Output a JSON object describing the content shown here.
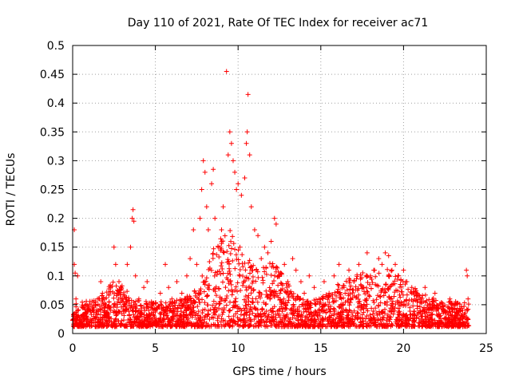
{
  "chart_data": {
    "type": "scatter",
    "title": "Day 110 of 2021, Rate Of TEC Index for receiver ac71",
    "xlabel": "GPS time / hours",
    "ylabel": "ROTI / TECUs",
    "xlim": [
      0,
      25
    ],
    "ylim": [
      0,
      0.5
    ],
    "xticks": [
      0,
      5,
      10,
      15,
      20,
      25
    ],
    "yticks": [
      0,
      0.05,
      0.1,
      0.15,
      0.2,
      0.25,
      0.3,
      0.35,
      0.4,
      0.45,
      0.5
    ],
    "xtick_labels": [
      "0",
      "5",
      "10",
      "15",
      "20",
      "25"
    ],
    "ytick_labels": [
      "0",
      "0.05",
      "0.1",
      "0.15",
      "0.2",
      "0.25",
      "0.3",
      "0.35",
      "0.4",
      "0.45",
      "0.5"
    ],
    "grid": true,
    "marker": "+",
    "series": [
      {
        "color": "#ff0000",
        "points": [
          [
            0.1,
            0.18
          ],
          [
            0.1,
            0.12
          ],
          [
            0.15,
            0.105
          ],
          [
            0.3,
            0.1
          ],
          [
            0.2,
            0.06
          ],
          [
            0.05,
            0.03
          ],
          [
            0.3,
            0.04
          ],
          [
            0.5,
            0.02
          ],
          [
            0.8,
            0.03
          ],
          [
            1.0,
            0.05
          ],
          [
            1.2,
            0.04
          ],
          [
            1.5,
            0.06
          ],
          [
            1.7,
            0.09
          ],
          [
            1.8,
            0.07
          ],
          [
            2.0,
            0.05
          ],
          [
            2.3,
            0.08
          ],
          [
            2.5,
            0.15
          ],
          [
            2.6,
            0.12
          ],
          [
            2.8,
            0.09
          ],
          [
            3.0,
            0.06
          ],
          [
            3.3,
            0.12
          ],
          [
            3.5,
            0.15
          ],
          [
            3.6,
            0.2
          ],
          [
            3.65,
            0.215
          ],
          [
            3.7,
            0.195
          ],
          [
            3.8,
            0.1
          ],
          [
            4.0,
            0.06
          ],
          [
            4.3,
            0.08
          ],
          [
            4.5,
            0.09
          ],
          [
            4.8,
            0.05
          ],
          [
            5.0,
            0.04
          ],
          [
            5.3,
            0.07
          ],
          [
            5.6,
            0.12
          ],
          [
            5.8,
            0.08
          ],
          [
            6.0,
            0.06
          ],
          [
            6.3,
            0.09
          ],
          [
            6.6,
            0.07
          ],
          [
            6.9,
            0.1
          ],
          [
            7.1,
            0.13
          ],
          [
            7.3,
            0.18
          ],
          [
            7.5,
            0.12
          ],
          [
            7.7,
            0.2
          ],
          [
            7.8,
            0.25
          ],
          [
            7.9,
            0.3
          ],
          [
            8.0,
            0.28
          ],
          [
            8.1,
            0.22
          ],
          [
            8.2,
            0.18
          ],
          [
            8.4,
            0.26
          ],
          [
            8.5,
            0.285
          ],
          [
            8.6,
            0.2
          ],
          [
            8.8,
            0.15
          ],
          [
            9.0,
            0.18
          ],
          [
            9.1,
            0.22
          ],
          [
            9.3,
            0.455
          ],
          [
            9.4,
            0.31
          ],
          [
            9.5,
            0.35
          ],
          [
            9.6,
            0.33
          ],
          [
            9.7,
            0.3
          ],
          [
            9.8,
            0.28
          ],
          [
            9.9,
            0.25
          ],
          [
            10.0,
            0.26
          ],
          [
            10.2,
            0.24
          ],
          [
            10.4,
            0.27
          ],
          [
            10.5,
            0.33
          ],
          [
            10.55,
            0.35
          ],
          [
            10.6,
            0.415
          ],
          [
            10.7,
            0.31
          ],
          [
            10.8,
            0.22
          ],
          [
            11.0,
            0.18
          ],
          [
            11.2,
            0.17
          ],
          [
            11.4,
            0.13
          ],
          [
            11.6,
            0.15
          ],
          [
            11.8,
            0.14
          ],
          [
            12.0,
            0.16
          ],
          [
            12.2,
            0.2
          ],
          [
            12.3,
            0.19
          ],
          [
            12.5,
            0.1
          ],
          [
            12.8,
            0.12
          ],
          [
            13.0,
            0.09
          ],
          [
            13.3,
            0.13
          ],
          [
            13.5,
            0.11
          ],
          [
            13.8,
            0.09
          ],
          [
            14.0,
            0.07
          ],
          [
            14.3,
            0.1
          ],
          [
            14.6,
            0.08
          ],
          [
            14.9,
            0.06
          ],
          [
            15.2,
            0.09
          ],
          [
            15.5,
            0.07
          ],
          [
            15.8,
            0.1
          ],
          [
            16.1,
            0.12
          ],
          [
            16.4,
            0.08
          ],
          [
            16.7,
            0.11
          ],
          [
            17.0,
            0.09
          ],
          [
            17.3,
            0.12
          ],
          [
            17.6,
            0.08
          ],
          [
            17.8,
            0.14
          ],
          [
            18.0,
            0.1
          ],
          [
            18.2,
            0.11
          ],
          [
            18.5,
            0.13
          ],
          [
            18.7,
            0.12
          ],
          [
            18.9,
            0.14
          ],
          [
            19.1,
            0.135
          ],
          [
            19.3,
            0.11
          ],
          [
            19.5,
            0.12
          ],
          [
            19.7,
            0.1
          ],
          [
            20.0,
            0.11
          ],
          [
            20.2,
            0.09
          ],
          [
            20.5,
            0.08
          ],
          [
            20.8,
            0.07
          ],
          [
            21.0,
            0.06
          ],
          [
            21.3,
            0.08
          ],
          [
            21.6,
            0.05
          ],
          [
            21.9,
            0.07
          ],
          [
            22.2,
            0.05
          ],
          [
            22.5,
            0.04
          ],
          [
            22.8,
            0.06
          ],
          [
            23.1,
            0.05
          ],
          [
            23.4,
            0.04
          ],
          [
            23.6,
            0.03
          ],
          [
            23.8,
            0.11
          ],
          [
            23.85,
            0.1
          ],
          [
            23.9,
            0.06
          ]
        ]
      }
    ]
  },
  "colors": {
    "series": "#ff0000",
    "axes": "#000000",
    "grid": "#a0a0a0"
  }
}
